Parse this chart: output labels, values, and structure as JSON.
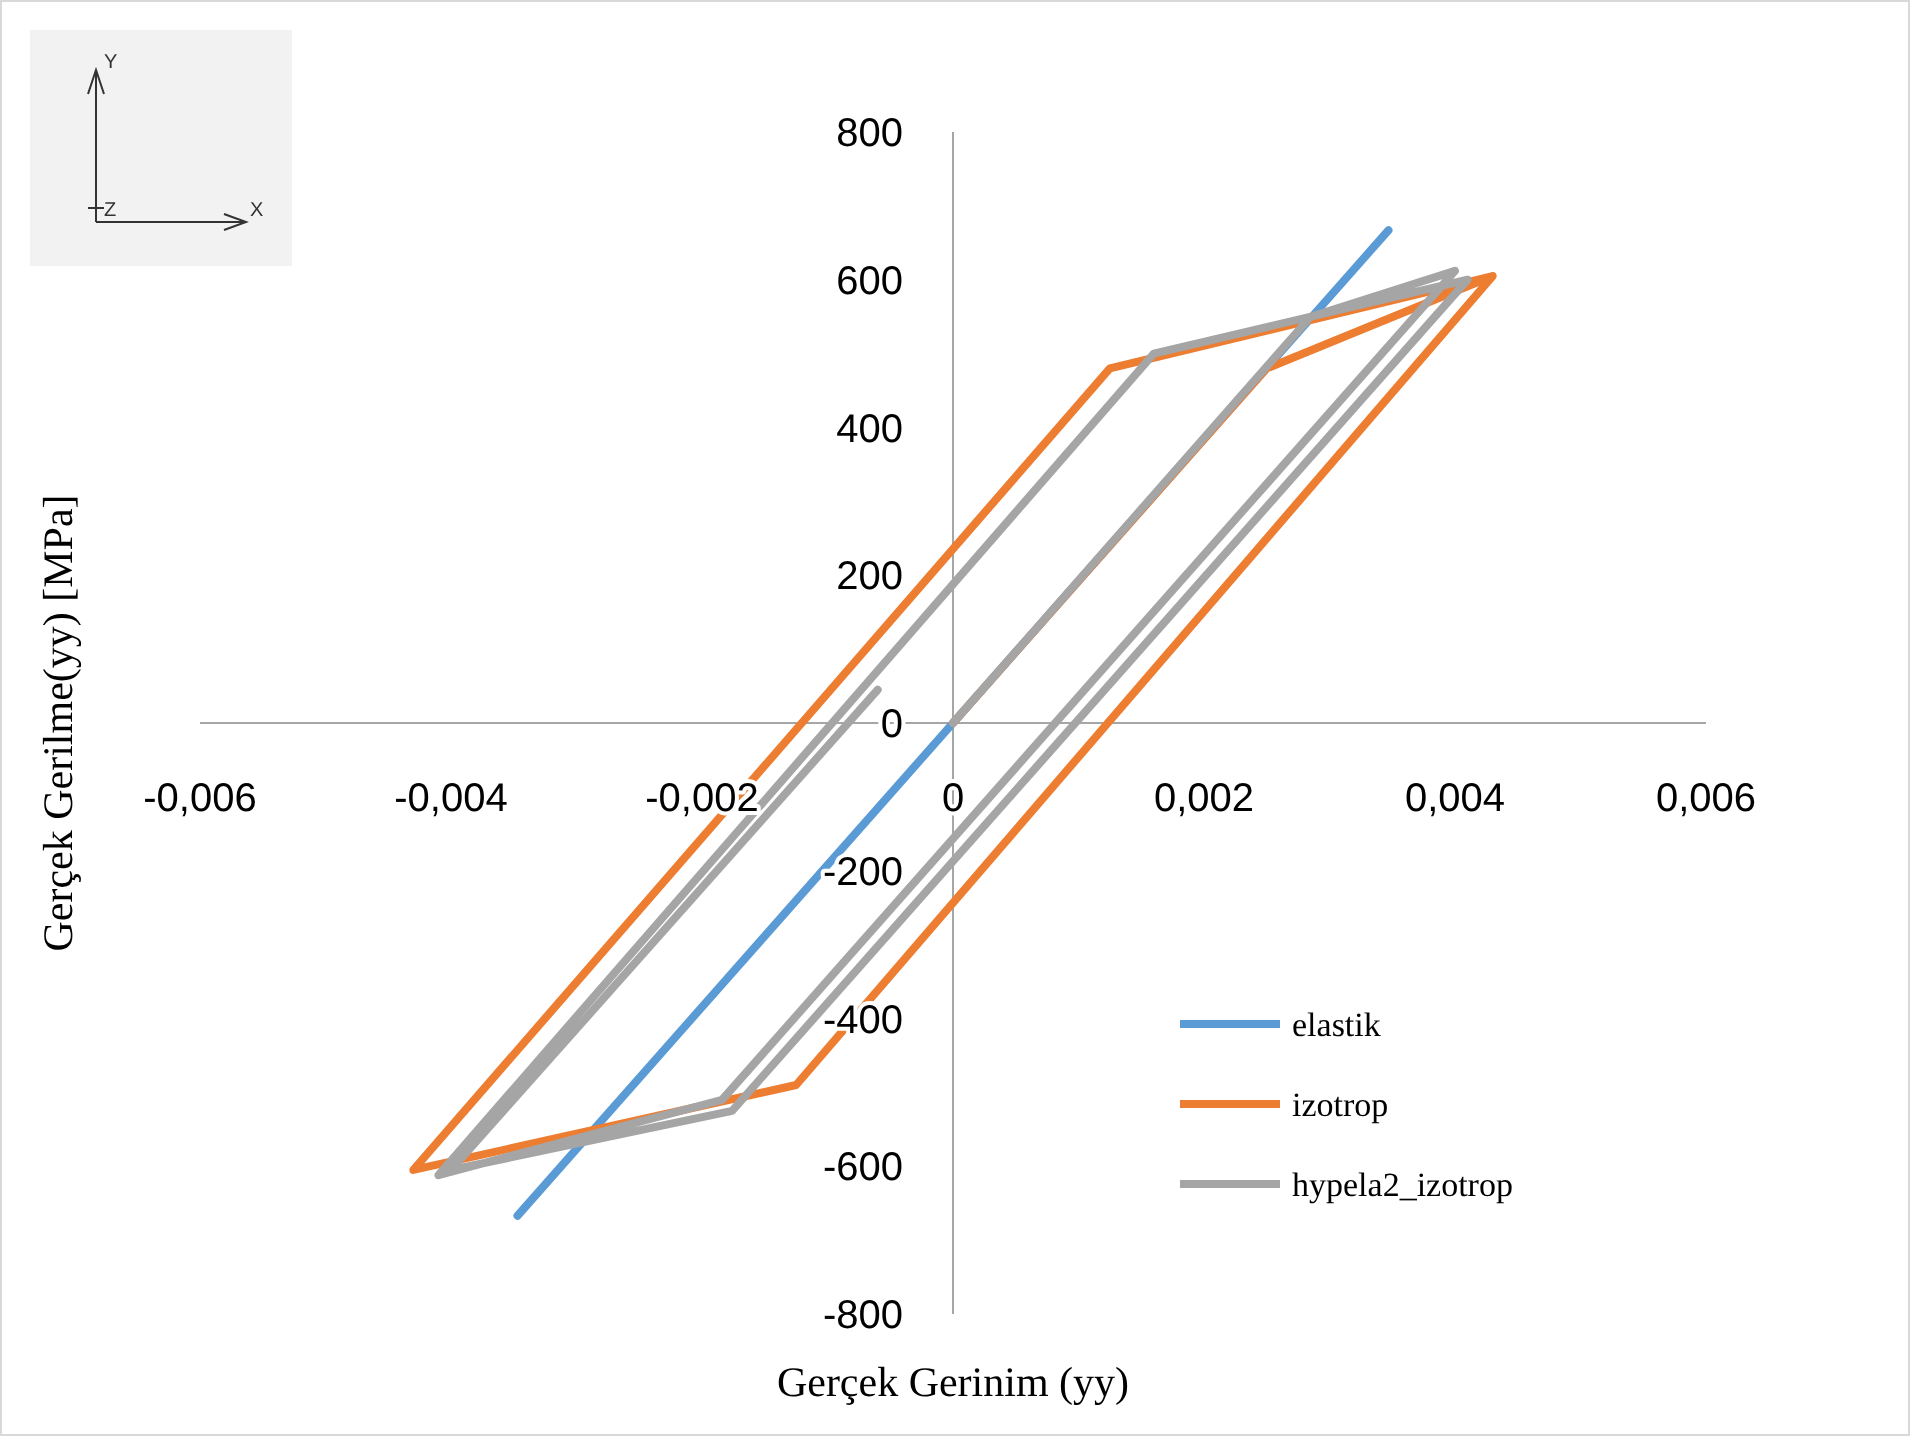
{
  "chart_data": {
    "type": "line",
    "xlabel": "Gerçek Gerinim (yy)",
    "ylabel": "Gerçek Gerilme(yy)  [MPa]",
    "xlim": [
      -0.006,
      0.006
    ],
    "ylim": [
      -800,
      800
    ],
    "xticks": [
      {
        "value": -0.006,
        "label": "-0,006"
      },
      {
        "value": -0.004,
        "label": "-0,004"
      },
      {
        "value": -0.002,
        "label": "-0,002"
      },
      {
        "value": 0,
        "label": "0"
      },
      {
        "value": 0.002,
        "label": "0,002"
      },
      {
        "value": 0.004,
        "label": "0,004"
      },
      {
        "value": 0.006,
        "label": "0,006"
      }
    ],
    "yticks": [
      -800,
      -600,
      -400,
      -200,
      0,
      200,
      400,
      600,
      800
    ],
    "grid": false,
    "legend": "right",
    "marker": "none",
    "line_style": "solid",
    "annotations": [
      "Y",
      "Z",
      "X"
    ],
    "series": [
      {
        "name": "elastik",
        "color": "#5b9bd5",
        "x": [
          -0.00347,
          0.00347
        ],
        "values": [
          -667,
          667
        ]
      },
      {
        "name": "izotrop",
        "color": "#ed7d31",
        "x": [
          0,
          0.0025,
          0.0043,
          -0.00125,
          -0.0043,
          0.00125,
          0.0043,
          -0.00125
        ],
        "values": [
          0,
          480,
          605,
          -490,
          -605,
          480,
          605,
          -490
        ]
      },
      {
        "name": "hypela2_izotrop",
        "color": "#a5a5a5",
        "x": [
          0,
          0.00285,
          0.004,
          -0.00184,
          -0.0041,
          0.0016,
          0.0041,
          -0.00176,
          -0.004,
          -0.0006
        ],
        "values": [
          0,
          550,
          612,
          -510,
          -612,
          500,
          600,
          -525,
          -605,
          45
        ]
      }
    ]
  }
}
